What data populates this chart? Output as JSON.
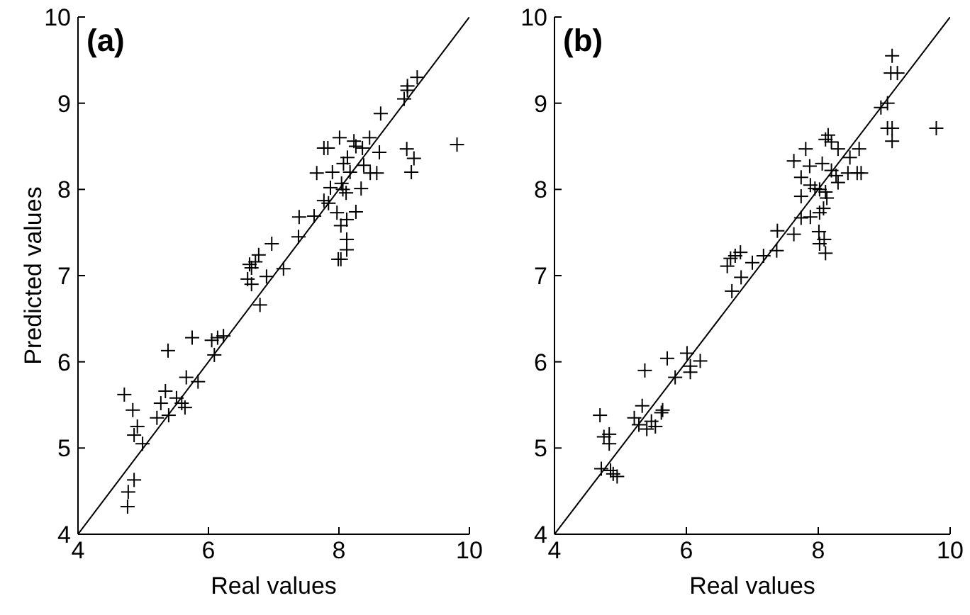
{
  "chart_data": [
    {
      "type": "scatter",
      "title": "(a)",
      "xlabel": "Real values",
      "ylabel": "Predicted values",
      "xlim": [
        4,
        10
      ],
      "ylim": [
        4,
        10
      ],
      "xticks": [
        4,
        6,
        8,
        10
      ],
      "yticks": [
        4,
        5,
        6,
        7,
        8,
        9,
        10
      ],
      "series": [
        {
          "marker": "cross",
          "color": "#000000",
          "x": [
            4.71,
            4.84,
            4.91,
            4.86,
            4.99,
            4.86,
            4.77,
            4.76,
            5.38,
            5.75,
            6.05,
            6.14,
            6.23,
            6.09,
            5.66,
            5.84,
            5.34,
            5.27,
            5.51,
            5.59,
            5.64,
            5.21,
            5.39,
            8.64,
            7.77,
            7.83,
            8.01,
            8.23,
            8.47,
            8.26,
            8.36,
            8.13,
            8.62,
            9.04,
            9.15,
            9.11,
            9.81,
            7.66,
            7.9,
            8.07,
            8.17,
            8.38,
            8.48,
            8.58,
            7.87,
            8.04,
            8.06,
            8.11,
            8.34,
            7.77,
            7.84,
            7.97,
            8.26,
            7.62,
            7.39,
            8.03,
            8.12,
            7.38,
            8.12,
            8.12,
            7.99,
            8.03,
            6.97,
            6.77,
            6.72,
            6.63,
            6.66,
            6.6,
            6.89,
            7.15,
            6.66,
            6.79,
            9.0,
            9.05,
            9.05,
            9.2
          ],
          "values": [
            5.62,
            5.44,
            5.25,
            5.15,
            5.05,
            4.63,
            4.49,
            4.32,
            6.13,
            6.28,
            6.25,
            6.28,
            6.3,
            6.08,
            5.82,
            5.77,
            5.66,
            5.52,
            5.58,
            5.52,
            5.47,
            5.35,
            5.38,
            8.88,
            8.48,
            8.48,
            8.6,
            8.56,
            8.6,
            8.5,
            8.48,
            8.37,
            8.43,
            8.47,
            8.36,
            8.2,
            8.52,
            8.19,
            8.2,
            8.3,
            8.2,
            8.28,
            8.19,
            8.19,
            8.02,
            8.07,
            8.0,
            7.96,
            8.01,
            7.87,
            7.84,
            7.73,
            7.74,
            7.69,
            7.68,
            7.58,
            7.65,
            7.45,
            7.42,
            7.3,
            7.19,
            7.19,
            7.37,
            7.24,
            7.16,
            7.13,
            7.09,
            6.96,
            6.99,
            7.08,
            6.9,
            6.66,
            9.05,
            9.15,
            9.2,
            9.3
          ]
        },
        {
          "type": "line",
          "color": "#000000",
          "x": [
            4,
            10
          ],
          "values": [
            4,
            10
          ]
        }
      ]
    },
    {
      "type": "scatter",
      "title": "(b)",
      "xlabel": "Real values",
      "xlim": [
        4,
        10
      ],
      "ylim": [
        4,
        10
      ],
      "xticks": [
        4,
        6,
        8,
        10
      ],
      "yticks": [
        4,
        5,
        6,
        7,
        8,
        9,
        10
      ],
      "series": [
        {
          "marker": "cross",
          "color": "#000000",
          "x": [
            4.69,
            4.75,
            4.83,
            4.83,
            4.71,
            4.85,
            4.89,
            4.95,
            5.37,
            5.71,
            6.01,
            5.83,
            6.06,
            6.21,
            6.06,
            5.33,
            5.21,
            5.28,
            5.4,
            5.47,
            5.53,
            5.64,
            5.62,
            6.62,
            6.67,
            6.74,
            6.82,
            6.69,
            6.83,
            7.0,
            7.17,
            7.37,
            7.38,
            7.63,
            7.74,
            7.88,
            8.02,
            8.08,
            7.74,
            8.13,
            8.01,
            8.02,
            8.11,
            8.09,
            7.74,
            7.88,
            7.95,
            8.02,
            8.11,
            7.63,
            7.81,
            7.87,
            8.06,
            8.11,
            8.15,
            8.2,
            8.3,
            8.2,
            8.27,
            8.3,
            8.45,
            8.48,
            8.62,
            8.59,
            8.65,
            9.05,
            9.12,
            9.12,
            9.79,
            9.05,
            9.1,
            9.12,
            9.2,
            8.95
          ],
          "values": [
            5.38,
            5.13,
            5.16,
            5.05,
            4.76,
            4.74,
            4.7,
            4.67,
            5.9,
            6.04,
            6.1,
            5.82,
            5.88,
            6.01,
            5.95,
            5.49,
            5.35,
            5.27,
            5.22,
            5.31,
            5.25,
            5.44,
            5.41,
            7.11,
            7.2,
            7.23,
            7.27,
            6.82,
            6.98,
            7.15,
            7.23,
            7.29,
            7.52,
            7.48,
            7.67,
            7.68,
            7.73,
            7.78,
            7.92,
            7.9,
            7.51,
            7.37,
            7.26,
            7.42,
            8.14,
            8.05,
            8.01,
            8.0,
            7.97,
            8.33,
            8.47,
            8.27,
            8.3,
            8.58,
            8.63,
            8.55,
            8.47,
            8.22,
            8.16,
            8.08,
            8.19,
            8.37,
            8.47,
            8.19,
            8.19,
            8.71,
            8.71,
            8.56,
            8.71,
            9.0,
            9.35,
            9.55,
            9.35,
            8.95
          ]
        },
        {
          "type": "line",
          "color": "#000000",
          "x": [
            4,
            10
          ],
          "values": [
            4,
            10
          ]
        }
      ]
    }
  ]
}
